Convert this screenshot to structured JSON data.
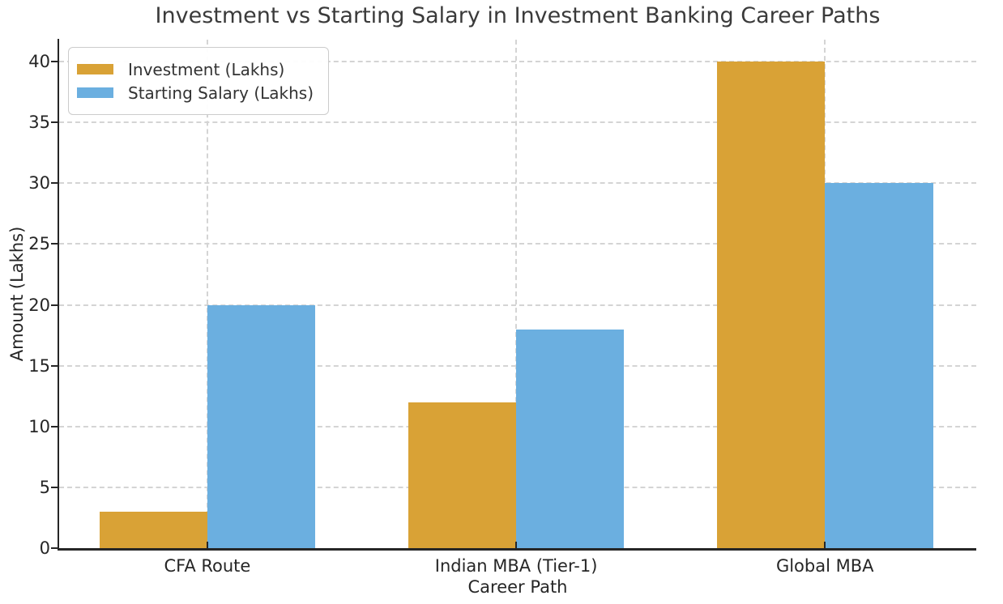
{
  "chart_data": {
    "type": "bar",
    "title": "Investment vs Starting Salary in Investment Banking Career Paths",
    "xlabel": "Career Path",
    "ylabel": "Amount (Lakhs)",
    "categories": [
      "CFA Route",
      "Indian MBA (Tier-1)",
      "Global MBA"
    ],
    "series": [
      {
        "name": "Investment (Lakhs)",
        "color": "#D9A236",
        "values": [
          3,
          12,
          40
        ]
      },
      {
        "name": "Starting Salary (Lakhs)",
        "color": "#6BAFE0",
        "values": [
          20,
          18,
          30
        ]
      }
    ],
    "yticks": [
      0,
      5,
      10,
      15,
      20,
      25,
      30,
      35,
      40
    ],
    "ylim": [
      0,
      41.8
    ],
    "xlim": [
      -0.48,
      2.49
    ],
    "bar_width": 0.35,
    "grid": "dashed, both axes",
    "legend_position": "upper left",
    "colors": {
      "grid": "#D4D4D4",
      "spine": "#262626",
      "text": "#333333"
    }
  }
}
